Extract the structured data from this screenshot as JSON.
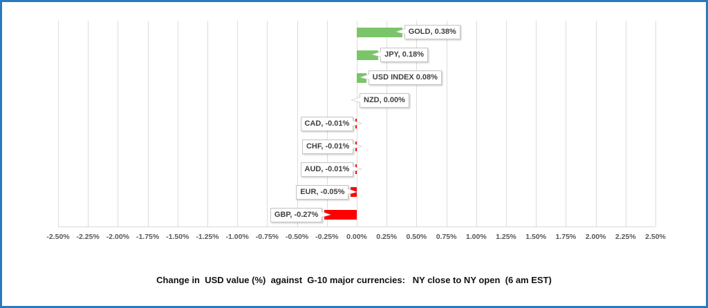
{
  "window": {
    "border_color": "#2979be",
    "background": "#ffffff"
  },
  "chart_data": {
    "type": "bar",
    "orientation": "horizontal",
    "title": "Change in  USD value (%)  against  G-10 major currencies:   NY close to NY open  (6 am EST)",
    "categories": [
      "GOLD",
      "JPY",
      "USD INDEX",
      "NZD",
      "CAD",
      "CHF",
      "AUD",
      "EUR",
      "GBP"
    ],
    "values": [
      0.38,
      0.18,
      0.08,
      0.0,
      -0.01,
      -0.01,
      -0.01,
      -0.05,
      -0.27
    ],
    "point_labels": [
      "GOLD, 0.38%",
      "JPY, 0.18%",
      "USD INDEX 0.08%",
      "NZD, 0.00%",
      "CAD, -0.01%",
      "CHF, -0.01%",
      "AUD, -0.01%",
      "EUR, -0.05%",
      "GBP, -0.27%"
    ],
    "xlim": [
      -2.5,
      2.5
    ],
    "tick_step": 0.25,
    "x_ticks": [
      "-2.50%",
      "-2.25%",
      "-2.00%",
      "-1.75%",
      "-1.50%",
      "-1.25%",
      "-1.00%",
      "-0.75%",
      "-0.50%",
      "-0.25%",
      "0.00%",
      "0.25%",
      "0.50%",
      "0.75%",
      "1.00%",
      "1.25%",
      "1.50%",
      "1.75%",
      "2.00%",
      "2.25%",
      "2.50%"
    ],
    "xlabel": "",
    "ylabel": "",
    "grid": "vertical",
    "legend": "none",
    "colors": {
      "positive": "#7ac569",
      "negative": "#fe0000",
      "gridline": "#dcdcdc",
      "axis_text": "#595959",
      "label_text": "#3f3f3f",
      "label_border": "#c3c3c3"
    }
  }
}
